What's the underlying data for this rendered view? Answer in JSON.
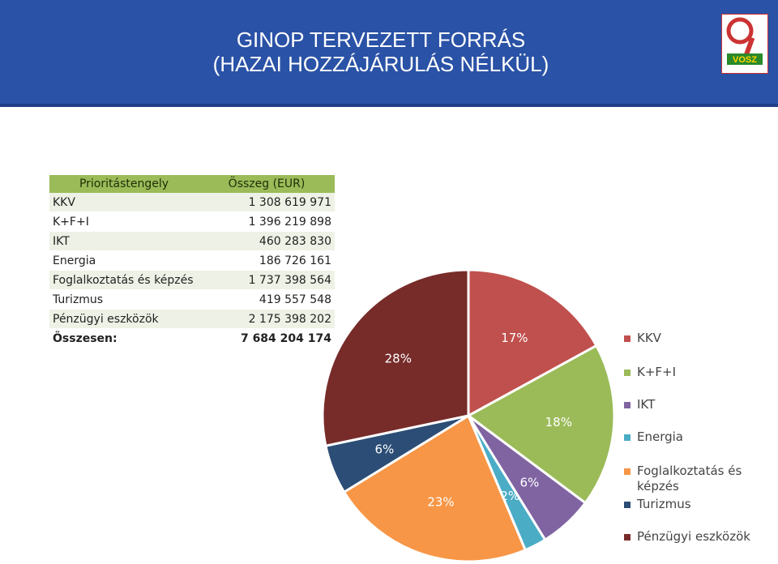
{
  "header": {
    "title_line1": "GINOP TERVEZETT FORRÁS",
    "title_line2": "(HAZAI HOZZÁJÁRULÁS NÉLKÜL)",
    "logo_text": "VOSZ"
  },
  "table": {
    "headers": [
      "Prioritástengely",
      "Összeg (EUR)"
    ],
    "rows": [
      [
        "KKV",
        "1 308 619 971"
      ],
      [
        "K+F+I",
        "1 396 219 898"
      ],
      [
        "IKT",
        "460 283 830"
      ],
      [
        "Energia",
        "186 726 161"
      ],
      [
        "Foglalkoztatás és képzés",
        "1 737 398 564"
      ],
      [
        "Turizmus",
        "419 557 548"
      ],
      [
        "Pénzügyi eszközök",
        "2 175 398 202"
      ]
    ],
    "total": [
      "Összesen:",
      "7 684 204 174"
    ]
  },
  "chart_data": {
    "type": "pie",
    "labels": [
      "KKV",
      "K+F+I",
      "IKT",
      "Energia",
      "Foglalkoztatás és képzés",
      "Turizmus",
      "Pénzügyi eszközök"
    ],
    "values": [
      1308619971,
      1396219898,
      460283830,
      186726161,
      1737398564,
      419557548,
      2175398202
    ],
    "percent_labels": [
      "17%",
      "18%",
      "6%",
      "2%",
      "23%",
      "6%",
      "28%"
    ],
    "colors": [
      "#c0504d",
      "#9bbb59",
      "#8064a2",
      "#4bacc6",
      "#f79646",
      "#2c4d75",
      "#772c2a"
    ],
    "legend_position": "right"
  }
}
